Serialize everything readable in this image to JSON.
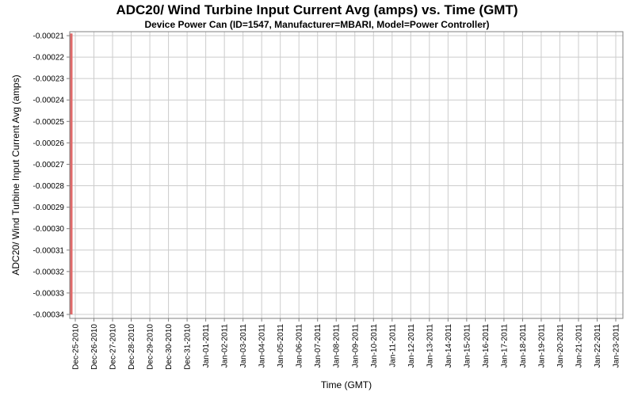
{
  "chart_data": {
    "type": "line",
    "title": "ADC20/ Wind Turbine Input Current Avg (amps) vs. Time (GMT)",
    "subtitle": "Device Power Can (ID=1547, Manufacturer=MBARI, Model=Power Controller)",
    "xlabel": "Time (GMT)",
    "ylabel": "ADC20/ Wind Turbine Input Current Avg (amps)",
    "ylim": [
      -0.00034,
      -0.00021
    ],
    "grid": true,
    "legend": "none",
    "y_ticks": [
      "-0.00021",
      "-0.00022",
      "-0.00023",
      "-0.00024",
      "-0.00025",
      "-0.00026",
      "-0.00027",
      "-0.00028",
      "-0.00029",
      "-0.00030",
      "-0.00031",
      "-0.00032",
      "-0.00033",
      "-0.00034"
    ],
    "x_ticks": [
      "Dec-25-2010",
      "Dec-26-2010",
      "Dec-27-2010",
      "Dec-28-2010",
      "Dec-29-2010",
      "Dec-30-2010",
      "Dec-31-2010",
      "Jan-01-2011",
      "Jan-02-2011",
      "Jan-03-2011",
      "Jan-04-2011",
      "Jan-05-2011",
      "Jan-06-2011",
      "Jan-07-2011",
      "Jan-08-2011",
      "Jan-09-2011",
      "Jan-10-2011",
      "Jan-11-2011",
      "Jan-12-2011",
      "Jan-13-2011",
      "Jan-14-2011",
      "Jan-15-2011",
      "Jan-16-2011",
      "Jan-17-2011",
      "Jan-18-2011",
      "Jan-19-2011",
      "Jan-20-2011",
      "Jan-21-2011",
      "Jan-22-2011",
      "Jan-23-2011"
    ],
    "series": [
      {
        "name": "ADC20/ Wind Turbine Input Current Avg (amps)",
        "color": "#e06a6a",
        "shape": "vertical-spike",
        "points": [
          {
            "x": "Dec-25-2010",
            "ymin": -0.00034,
            "ymax": -0.000209
          }
        ],
        "note": "single vertical red spike at extreme left edge of plot spanning full y-range; no other data visible"
      }
    ],
    "colors": {
      "background": "#ffffff",
      "plot_background": "#ffffff",
      "gridline": "#cccccc",
      "plot_border": "#808080",
      "tick": "#808080",
      "text": "#000000"
    }
  }
}
